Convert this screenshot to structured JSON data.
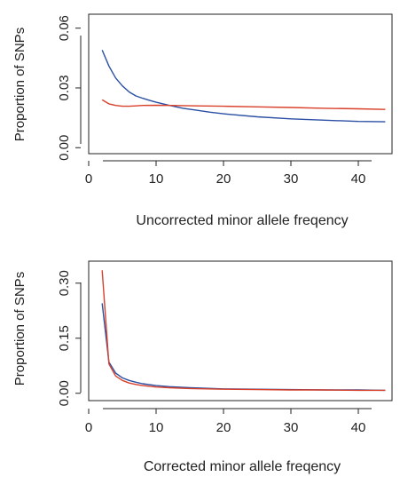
{
  "chart_data": [
    {
      "type": "line",
      "title": "",
      "xlabel": "Uncorrected minor allele freqency",
      "ylabel": "Proportion of SNPs",
      "xlim": [
        0,
        45
      ],
      "ylim": [
        -0.003,
        0.067
      ],
      "xticks": [
        0,
        10,
        20,
        30,
        40
      ],
      "xtick_labels": [
        "0",
        "10",
        "20",
        "30",
        "40"
      ],
      "yticks": [
        0.0,
        0.03,
        0.06
      ],
      "ytick_labels": [
        "0.00",
        "0.03",
        "0.06"
      ],
      "grid": false,
      "legend": "none",
      "series": [
        {
          "color": "#2b4fa3",
          "x": [
            2,
            3,
            4,
            5,
            6,
            7,
            8,
            9,
            10,
            12,
            14,
            16,
            18,
            20,
            25,
            30,
            35,
            40,
            44
          ],
          "y": [
            0.049,
            0.041,
            0.035,
            0.031,
            0.028,
            0.026,
            0.0248,
            0.0238,
            0.0228,
            0.0212,
            0.0198,
            0.0188,
            0.0178,
            0.017,
            0.0155,
            0.0145,
            0.0138,
            0.0132,
            0.013
          ]
        },
        {
          "color": "#d9402a",
          "x": [
            2,
            3,
            4,
            5,
            6,
            7,
            8,
            10,
            12,
            14,
            16,
            20,
            25,
            30,
            35,
            40,
            44
          ],
          "y": [
            0.024,
            0.022,
            0.0212,
            0.0208,
            0.0208,
            0.021,
            0.0212,
            0.0213,
            0.0212,
            0.0211,
            0.021,
            0.0208,
            0.0205,
            0.0202,
            0.0198,
            0.0195,
            0.0192
          ]
        }
      ]
    },
    {
      "type": "line",
      "title": "",
      "xlabel": "Corrected minor allele freqency",
      "ylabel": "Proportion of SNPs",
      "xlim": [
        0,
        45
      ],
      "ylim": [
        -0.02,
        0.36
      ],
      "xticks": [
        0,
        10,
        20,
        30,
        40
      ],
      "xtick_labels": [
        "0",
        "10",
        "20",
        "30",
        "40"
      ],
      "yticks": [
        0.0,
        0.15,
        0.3
      ],
      "ytick_labels": [
        "0.00",
        "0.15",
        "0.30"
      ],
      "grid": false,
      "legend": "none",
      "series": [
        {
          "color": "#2b4fa3",
          "x": [
            2,
            3,
            4,
            5,
            6,
            7,
            8,
            10,
            12,
            15,
            20,
            25,
            30,
            35,
            40,
            44
          ],
          "y": [
            0.245,
            0.085,
            0.055,
            0.042,
            0.035,
            0.03,
            0.026,
            0.021,
            0.018,
            0.015,
            0.012,
            0.011,
            0.01,
            0.009,
            0.009,
            0.008
          ]
        },
        {
          "color": "#d9402a",
          "x": [
            2,
            3,
            4,
            5,
            6,
            7,
            8,
            10,
            12,
            15,
            20,
            25,
            30,
            35,
            40,
            44
          ],
          "y": [
            0.335,
            0.08,
            0.047,
            0.035,
            0.028,
            0.024,
            0.021,
            0.017,
            0.015,
            0.013,
            0.011,
            0.01,
            0.009,
            0.009,
            0.008,
            0.008
          ]
        }
      ]
    }
  ]
}
